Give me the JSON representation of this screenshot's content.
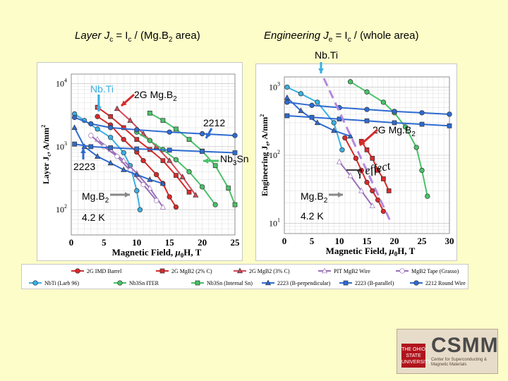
{
  "headers": {
    "left": "Layer Jₙ = Iₙ / (Mg.B₂ area)",
    "left_parts": {
      "a": "Layer J",
      "b": "c",
      "c": " = I",
      "d": "c",
      "e": " / (Mg.B",
      "f": "2",
      "g": " area)"
    },
    "right_parts": {
      "a": "Engineering J",
      "b": "e",
      "c": " = I",
      "d": "c",
      "e": " / (whole area)"
    }
  },
  "annotations": {
    "nbti_top": "Nb.Ti",
    "left_nbti": "Nb.Ti",
    "left_2g": "2G Mg.B",
    "sub2": "2",
    "left_2212": "2212",
    "left_2223": "2223",
    "left_mgb2": "Mg.B",
    "left_temp": "4.2 K",
    "nb3sn": "Nb",
    "nb3sn_sub": "3",
    "nb3sn_end": "Sn",
    "right_2g": "2G Mg.B",
    "gamma_effect": "γ effect",
    "right_mgb2": "Mg.B",
    "right_temp": "4.2 K"
  },
  "chart_data": [
    {
      "type": "scatter",
      "name": "layer",
      "ylabel_parts": {
        "a": "Layer J",
        "b": "c",
        "c": ", A/mm",
        "d": "2"
      },
      "xlabel_parts": {
        "a": "Magnetic Field, ",
        "b": "μ",
        "c": "0",
        "d": "H, T"
      },
      "xlim": [
        0,
        25
      ],
      "ylim_log10": [
        1.6,
        4.15
      ],
      "xticks": [
        "0",
        "5",
        "10",
        "15",
        "20",
        "25"
      ],
      "yticks": [
        {
          "v": 2,
          "base": "10",
          "exp": "2"
        },
        {
          "v": 3,
          "base": "10",
          "exp": "3"
        },
        {
          "v": 4,
          "base": "10",
          "exp": "4"
        }
      ],
      "series": [
        {
          "key": "nbti",
          "color": "#3ab0e2",
          "marker": "circle",
          "points": [
            [
              0.5,
              3300
            ],
            [
              2,
              2600
            ],
            [
              4,
              1900
            ],
            [
              6,
              1400
            ],
            [
              8,
              800
            ],
            [
              9,
              500
            ],
            [
              10,
              200
            ],
            [
              10.5,
              100
            ]
          ]
        },
        {
          "key": "imd",
          "color": "#d72a2a",
          "marker": "circle",
          "points": [
            [
              4,
              3000
            ],
            [
              6,
              2200
            ],
            [
              8,
              1300
            ],
            [
              10,
              820
            ],
            [
              11,
              600
            ],
            [
              13,
              360
            ],
            [
              14,
              260
            ],
            [
              15,
              160
            ],
            [
              16,
              110
            ]
          ]
        },
        {
          "key": "mgb2_3c",
          "color": "#d72a2a",
          "marker": "square",
          "points": [
            [
              4,
              4200
            ],
            [
              6,
              3000
            ],
            [
              8,
              2000
            ],
            [
              10,
              1300
            ],
            [
              12,
              900
            ],
            [
              14,
              600
            ],
            [
              16,
              350
            ],
            [
              18,
              190
            ]
          ]
        },
        {
          "key": "mgb2_3c_tri",
          "color": "#d44a5a",
          "marker": "triangle",
          "points": [
            [
              7,
              4000
            ],
            [
              9,
              2600
            ],
            [
              11,
              1600
            ],
            [
              13,
              1000
            ],
            [
              15,
              600
            ],
            [
              17,
              330
            ],
            [
              19,
              170
            ]
          ]
        },
        {
          "key": "pit",
          "color": "#9a6fb8",
          "marker": "triangle-open",
          "points": [
            [
              4,
              1300
            ],
            [
              6,
              900
            ],
            [
              8,
              600
            ],
            [
              10,
              380
            ],
            [
              12,
              220
            ],
            [
              14,
              110
            ]
          ]
        },
        {
          "key": "tape",
          "color": "#9a6fb8",
          "marker": "circle-open",
          "points": [
            [
              3,
              1500
            ],
            [
              5,
              1000
            ],
            [
              7,
              700
            ],
            [
              9,
              420
            ],
            [
              11,
              250
            ],
            [
              13,
              140
            ]
          ]
        },
        {
          "key": "nb3sn_iter",
          "color": "#49c26a",
          "marker": "circle",
          "points": [
            [
              10,
              1700
            ],
            [
              12,
              1250
            ],
            [
              14,
              900
            ],
            [
              16,
              620
            ],
            [
              18,
              400
            ],
            [
              20,
              230
            ],
            [
              22,
              120
            ]
          ]
        },
        {
          "key": "nb3sn_int",
          "color": "#49c26a",
          "marker": "square",
          "points": [
            [
              12,
              3400
            ],
            [
              14,
              2600
            ],
            [
              16,
              1900
            ],
            [
              18,
              1300
            ],
            [
              20,
              850
            ],
            [
              22,
              500
            ],
            [
              24,
              220
            ],
            [
              25,
              120
            ]
          ]
        },
        {
          "key": "b2223_perp",
          "color": "#2e6bd1",
          "marker": "triangle",
          "points": [
            [
              0.5,
              2000
            ],
            [
              2,
              1000
            ],
            [
              4,
              700
            ],
            [
              6,
              550
            ],
            [
              8,
              430
            ],
            [
              10,
              360
            ],
            [
              12,
              300
            ],
            [
              14,
              260
            ]
          ]
        },
        {
          "key": "b2223_par",
          "color": "#2e6bd1",
          "marker": "square",
          "points": [
            [
              0.5,
              1100
            ],
            [
              3,
              1000
            ],
            [
              6,
              960
            ],
            [
              10,
              920
            ],
            [
              15,
              880
            ],
            [
              20,
              840
            ],
            [
              25,
              800
            ]
          ]
        },
        {
          "key": "b2212",
          "color": "#2e6bd1",
          "marker": "circle",
          "points": [
            [
              0.5,
              2900
            ],
            [
              3,
              2300
            ],
            [
              6,
              2000
            ],
            [
              10,
              1850
            ],
            [
              15,
              1700
            ],
            [
              20,
              1600
            ],
            [
              25,
              1500
            ]
          ]
        }
      ]
    },
    {
      "type": "scatter",
      "name": "engineering",
      "ylabel_parts": {
        "a": "Engineering J",
        "b": "e",
        "c": ", A/mm",
        "d": "2"
      },
      "xlabel_parts": {
        "a": "Magnetic Field, ",
        "b": "μ",
        "c": "0",
        "d": "H, T"
      },
      "xlim": [
        0,
        30
      ],
      "ylim_log10": [
        0.85,
        3.15
      ],
      "xticks": [
        "0",
        "5",
        "10",
        "15",
        "20",
        "25",
        "30"
      ],
      "yticks": [
        {
          "v": 1,
          "base": "10",
          "exp": "1"
        },
        {
          "v": 2,
          "base": "10",
          "exp": "2"
        },
        {
          "v": 3,
          "base": "10",
          "exp": "3"
        }
      ],
      "series": [
        {
          "key": "nbti",
          "color": "#3ab0e2",
          "marker": "circle",
          "points": [
            [
              0.5,
              1000
            ],
            [
              3,
              800
            ],
            [
              6,
              600
            ],
            [
              9,
              300
            ],
            [
              10.5,
              120
            ]
          ]
        },
        {
          "key": "imd",
          "color": "#d72a2a",
          "marker": "circle",
          "points": [
            [
              11,
              180
            ],
            [
              13,
              90
            ],
            [
              14,
              60
            ],
            [
              15,
              40
            ],
            [
              16,
              30
            ],
            [
              17,
              22
            ],
            [
              18,
              15
            ]
          ]
        },
        {
          "key": "mgb2_3c",
          "color": "#d72a2a",
          "marker": "square",
          "points": [
            [
              14,
              160
            ],
            [
              15,
              120
            ],
            [
              16,
              90
            ],
            [
              17,
              60
            ],
            [
              18,
              45
            ],
            [
              19,
              30
            ]
          ]
        },
        {
          "key": "pit",
          "color": "#9a6fb8",
          "marker": "triangle-open",
          "points": [
            [
              10,
              80
            ],
            [
              12,
              50
            ],
            [
              14,
              30
            ],
            [
              16,
              18
            ]
          ]
        },
        {
          "key": "nb3sn_int",
          "color": "#49c26a",
          "marker": "circle",
          "points": [
            [
              12,
              1200
            ],
            [
              15,
              850
            ],
            [
              18,
              600
            ],
            [
              20,
              420
            ],
            [
              22,
              260
            ],
            [
              24,
              130
            ],
            [
              25,
              60
            ],
            [
              26,
              25
            ]
          ]
        },
        {
          "key": "b2223_perp",
          "color": "#2e6bd1",
          "marker": "triangle",
          "points": [
            [
              0.5,
              700
            ],
            [
              3,
              450
            ],
            [
              6,
              300
            ],
            [
              9,
              230
            ],
            [
              12,
              190
            ]
          ]
        },
        {
          "key": "b2223_par",
          "color": "#2e6bd1",
          "marker": "square",
          "points": [
            [
              0.5,
              380
            ],
            [
              5,
              360
            ],
            [
              10,
              340
            ],
            [
              15,
              320
            ],
            [
              20,
              300
            ],
            [
              25,
              285
            ],
            [
              30,
              270
            ]
          ]
        },
        {
          "key": "b2212",
          "color": "#2e6bd1",
          "marker": "circle",
          "points": [
            [
              0.5,
              600
            ],
            [
              5,
              540
            ],
            [
              10,
              500
            ],
            [
              15,
              470
            ],
            [
              20,
              440
            ],
            [
              25,
              420
            ],
            [
              30,
              400
            ]
          ]
        }
      ]
    }
  ],
  "legend": [
    {
      "label": "2G IMD Barrel",
      "color": "#d72a2a",
      "marker": "circle"
    },
    {
      "label": "2G MgB2 (2% C)",
      "color": "#d72a2a",
      "marker": "square"
    },
    {
      "label": "2G MgB2 (3% C)",
      "color": "#d44a5a",
      "marker": "triangle"
    },
    {
      "label": "PIT MgB2 Wire",
      "color": "#9a6fb8",
      "marker": "triangle-open"
    },
    {
      "label": "MgB2 Tape (Grasso)",
      "color": "#9a6fb8",
      "marker": "circle-open"
    },
    {
      "label": "NbTi (Larb 96)",
      "color": "#3ab0e2",
      "marker": "circle"
    },
    {
      "label": "Nb3Sn ITER",
      "color": "#49c26a",
      "marker": "circle"
    },
    {
      "label": "Nb3Sn (Internal Sn)",
      "color": "#49c26a",
      "marker": "square"
    },
    {
      "label": "2223 (B-perpendicular)",
      "color": "#2e6bd1",
      "marker": "triangle"
    },
    {
      "label": "2223 (B-parallel)",
      "color": "#2e6bd1",
      "marker": "square"
    },
    {
      "label": "2212 Round Wire",
      "color": "#2e6bd1",
      "marker": "circle"
    }
  ],
  "logo": {
    "name": "CSMM",
    "seal": "THE OHIO STATE UNIVERSITY",
    "sub": "Center for Superconducting & Magnetic Materials"
  }
}
